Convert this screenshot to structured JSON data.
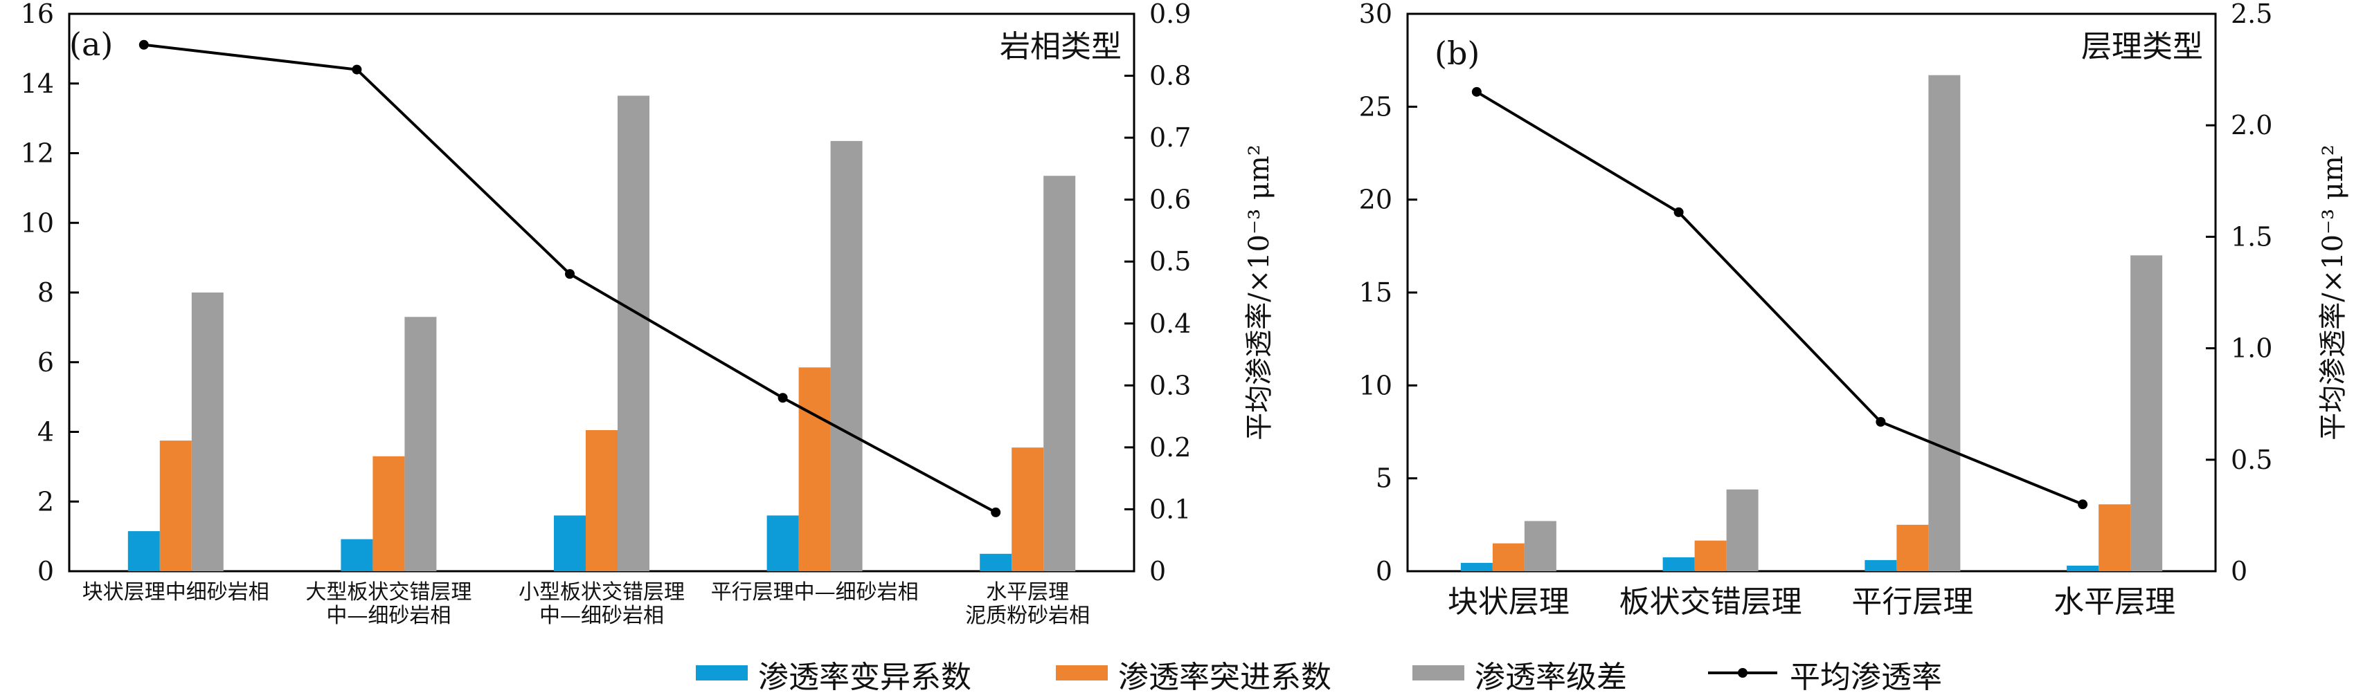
{
  "colors": {
    "variation": "#0e9cd8",
    "breakthrough": "#ee8430",
    "grade": "#9e9e9e",
    "mean": "#000000"
  },
  "legend": {
    "variation": "渗透率变异系数",
    "breakthrough": "渗透率突进系数",
    "grade": "渗透率级差",
    "mean": "平均渗透率"
  },
  "chart_data": [
    {
      "type": "bar",
      "panel_label": "(a)",
      "title": "岩相类型",
      "categories": [
        [
          "块状层理中细砂岩相"
        ],
        [
          "大型板状交错层理",
          "中—细砂岩相"
        ],
        [
          "小型板状交错层理",
          "中—细砂岩相"
        ],
        [
          "平行层理中—细砂岩相"
        ],
        [
          "水平层理",
          "泥质粉砂岩相"
        ]
      ],
      "ylim": [
        0,
        16
      ],
      "yticks": [
        0,
        2,
        4,
        6,
        8,
        10,
        12,
        14,
        16
      ],
      "y2lim": [
        0,
        0.9
      ],
      "y2ticks": [
        "0",
        "0.1",
        "0.2",
        "0.3",
        "0.4",
        "0.5",
        "0.6",
        "0.7",
        "0.8",
        "0.9"
      ],
      "y2label": "平均渗透率/×10⁻³ μm²",
      "series": [
        {
          "name": "渗透率变异系数",
          "key": "variation",
          "values": [
            1.15,
            0.92,
            1.6,
            1.6,
            0.5
          ]
        },
        {
          "name": "渗透率突进系数",
          "key": "breakthrough",
          "values": [
            3.75,
            3.3,
            4.05,
            5.85,
            3.55
          ]
        },
        {
          "name": "渗透率级差",
          "key": "grade",
          "values": [
            8.0,
            7.3,
            13.65,
            12.35,
            11.35
          ]
        }
      ],
      "line": {
        "name": "平均渗透率",
        "key": "mean",
        "values": [
          0.85,
          0.81,
          0.48,
          0.28,
          0.095
        ]
      }
    },
    {
      "type": "bar",
      "panel_label": "(b)",
      "title": "层理类型",
      "categories": [
        [
          "块状层理"
        ],
        [
          "板状交错层理"
        ],
        [
          "平行层理"
        ],
        [
          "水平层理"
        ]
      ],
      "ylim": [
        0,
        30
      ],
      "yticks": [
        0,
        5,
        10,
        15,
        20,
        25,
        30
      ],
      "y2lim": [
        0,
        2.5
      ],
      "y2ticks": [
        "0",
        "0.5",
        "1.0",
        "1.5",
        "2.0",
        "2.5"
      ],
      "y2label": "平均渗透率/×10⁻³ μm²",
      "series": [
        {
          "name": "渗透率变异系数",
          "key": "variation",
          "values": [
            0.45,
            0.75,
            0.6,
            0.3
          ]
        },
        {
          "name": "渗透率突进系数",
          "key": "breakthrough",
          "values": [
            1.5,
            1.65,
            2.5,
            3.6
          ]
        },
        {
          "name": "渗透率级差",
          "key": "grade",
          "values": [
            2.7,
            4.4,
            26.7,
            17.0
          ]
        }
      ],
      "line": {
        "name": "平均渗透率",
        "key": "mean",
        "values": [
          2.15,
          1.61,
          0.67,
          0.3
        ]
      }
    }
  ]
}
